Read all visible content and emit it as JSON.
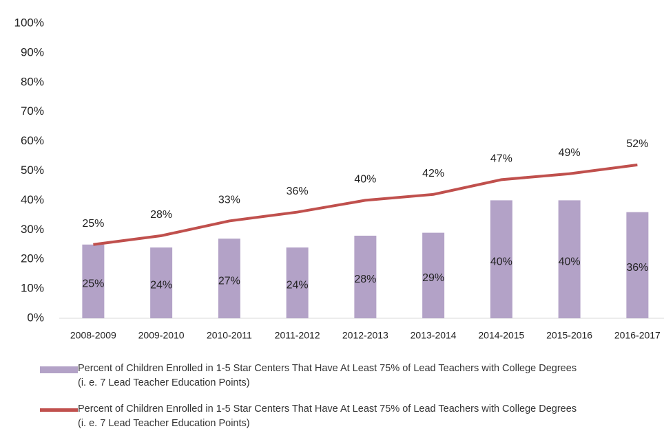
{
  "chart_data": {
    "type": "bar",
    "categories": [
      "2008-2009",
      "2009-2010",
      "2010-2011",
      "2011-2012",
      "2012-2013",
      "2013-2014",
      "2014-2015",
      "2015-2016",
      "2016-2017"
    ],
    "series": [
      {
        "name": "Percent of Children Enrolled in 1-5 Star Centers That Have At Least 75% of Lead Teachers with College Degrees\n(i. e. 7 Lead Teacher Education Points)",
        "type": "bar",
        "color": "#b3a2c7",
        "values": [
          25,
          24,
          27,
          24,
          28,
          29,
          40,
          40,
          36
        ],
        "value_labels": [
          "25%",
          "24%",
          "27%",
          "24%",
          "28%",
          "29%",
          "40%",
          "40%",
          "36%"
        ]
      },
      {
        "name": "Percent of Children Enrolled in 1-5 Star Centers That Have At Least 75% of Lead Teachers with College Degrees\n(i. e. 7 Lead Teacher Education Points)",
        "type": "line",
        "color": "#c0504d",
        "values": [
          25,
          28,
          33,
          36,
          40,
          42,
          47,
          49,
          52
        ],
        "value_labels": [
          "25%",
          "28%",
          "33%",
          "36%",
          "40%",
          "42%",
          "47%",
          "49%",
          "52%"
        ]
      }
    ],
    "ylim": [
      0,
      100
    ],
    "yticks": [
      {
        "value": 0,
        "label": "0%"
      },
      {
        "value": 10,
        "label": "10%"
      },
      {
        "value": 20,
        "label": "20%"
      },
      {
        "value": 30,
        "label": "30%"
      },
      {
        "value": 40,
        "label": "40%"
      },
      {
        "value": 50,
        "label": "50%"
      },
      {
        "value": 60,
        "label": "60%"
      },
      {
        "value": 70,
        "label": "70%"
      },
      {
        "value": 80,
        "label": "80%"
      },
      {
        "value": 90,
        "label": "90%"
      },
      {
        "value": 100,
        "label": "100%"
      }
    ],
    "grid": false
  }
}
